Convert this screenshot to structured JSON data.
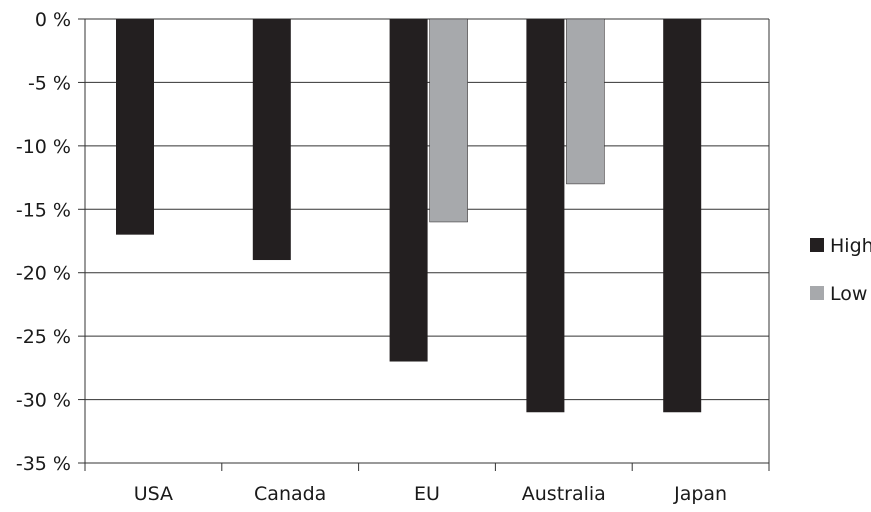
{
  "chart_data": {
    "type": "bar",
    "categories": [
      "USA",
      "Canada",
      "EU",
      "Australia",
      "Japan"
    ],
    "series": [
      {
        "name": "High",
        "values": [
          -17,
          -19,
          -27,
          -31,
          -31
        ],
        "color": "#231f20"
      },
      {
        "name": "Low",
        "values": [
          null,
          null,
          -16,
          -13,
          null
        ],
        "color": "#a7a9ac"
      }
    ],
    "y_ticks": [
      0,
      -5,
      -10,
      -15,
      -20,
      -25,
      -30,
      -35
    ],
    "y_tick_labels": [
      "0 %",
      "-5 %",
      "-10 %",
      "-15 %",
      "-20 %",
      "-25 %",
      "-30 %",
      "-35 %"
    ],
    "ylim": [
      -35,
      0
    ],
    "grid": true,
    "legend_position": "right"
  }
}
